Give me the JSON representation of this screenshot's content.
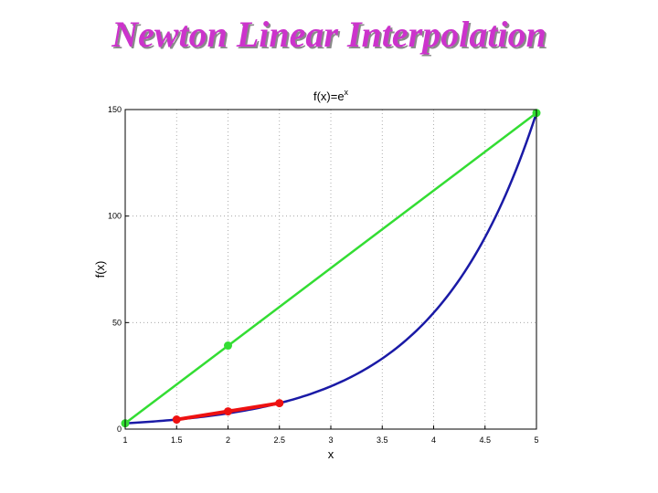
{
  "slide": {
    "title": "Newton Linear Interpolation"
  },
  "chart_data": {
    "type": "line",
    "title": "f(x)=e",
    "title_sup": "x",
    "xlabel": "x",
    "ylabel": "f(x)",
    "xlim": [
      1,
      5
    ],
    "ylim": [
      0,
      150
    ],
    "xticks": [
      "1",
      "1.5",
      "2",
      "2.5",
      "3",
      "3.5",
      "4",
      "4.5",
      "5"
    ],
    "yticks": [
      "0",
      "50",
      "100",
      "150"
    ],
    "grid": true,
    "series": [
      {
        "role": "curve",
        "color": "#1a1aa6",
        "function": "exp",
        "x_range": [
          1,
          5
        ]
      },
      {
        "role": "wide-interpolant",
        "color": "#33dd33",
        "x": [
          1,
          5
        ],
        "y": [
          2.718,
          148.41
        ],
        "markers_x": [
          1,
          2,
          5
        ],
        "markers_y": [
          2.718,
          39.2,
          148.41
        ]
      },
      {
        "role": "narrow-interpolant",
        "color": "#ee1111",
        "x": [
          1.5,
          2.5
        ],
        "y": [
          4.482,
          12.18
        ],
        "markers_x": [
          1.5,
          2,
          2.5
        ],
        "markers_y": [
          4.482,
          8.33,
          12.18
        ]
      }
    ]
  }
}
